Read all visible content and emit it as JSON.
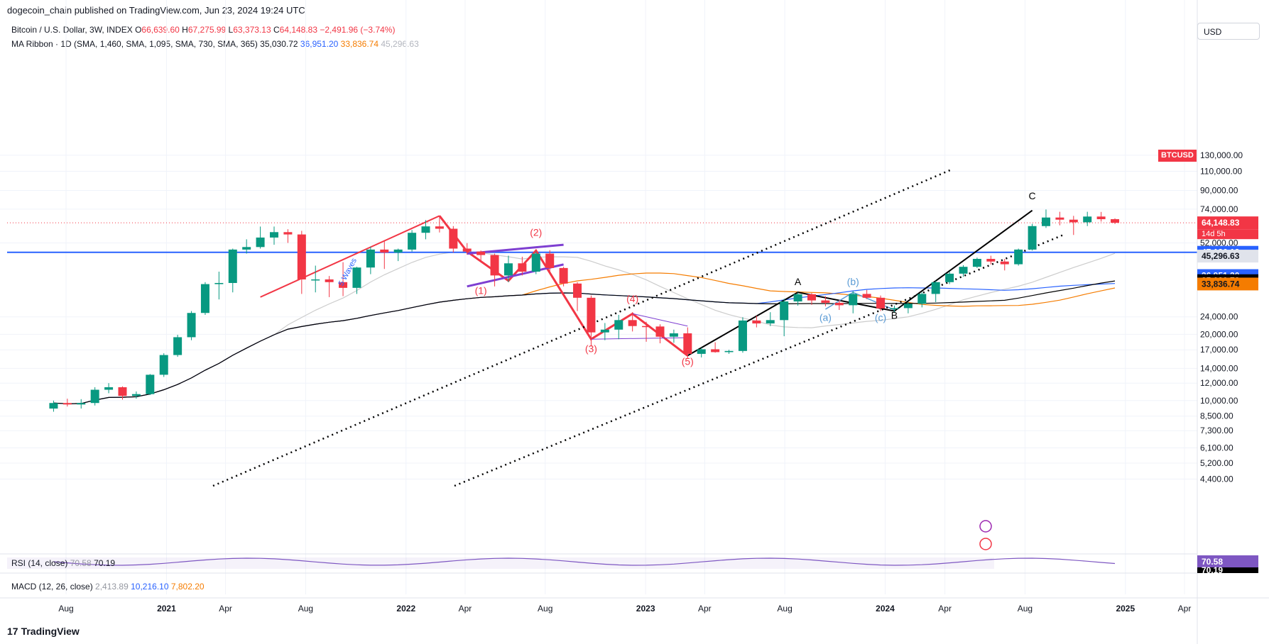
{
  "header": {
    "publisher": "dogecoin_chain published on TradingView.com, Jun 23, 2024 19:24 UTC"
  },
  "legend": {
    "symbol": "Bitcoin / U.S. Dollar, 3W, INDEX",
    "o_label": "O",
    "o": "66,639.60",
    "h_label": "H",
    "h": "67,275.99",
    "l_label": "L",
    "l": "63,373.13",
    "c_label": "C",
    "c": "64,148.83",
    "change": "−2,491.96 (−3.74%)",
    "ma_ribbon": "MA Ribbon · 1D (SMA, 1,460, SMA, 1,095, SMA, 730, SMA, 365)",
    "ma1": "35,030.72",
    "ma2": "36,951.20",
    "ma3": "33,836.74",
    "ma4": "45,296.63"
  },
  "currency": "USD",
  "colors": {
    "up": "#089981",
    "down": "#f23645",
    "hline": "#2962ff",
    "ma1460": "#000000",
    "ma1095": "#2962ff",
    "ma730": "#f57c00",
    "ma365": "#cccccc",
    "wave_red": "#f23645",
    "channel": "#7e3fd1",
    "abc": "#5a9bd5"
  },
  "chart_data": {
    "type": "candlestick",
    "symbol_tag": "BTCUSD",
    "time_remaining": "14d 5h",
    "y_scale": "log",
    "y_ticks": [
      4400,
      5200,
      6100,
      7300,
      8500,
      10000,
      12000,
      14000,
      17000,
      20000,
      24000,
      52000,
      74000,
      90000,
      110000,
      130000
    ],
    "y_tick_labels": [
      "4,400.00",
      "5,200.00",
      "6,100.00",
      "7,300.00",
      "8,500.00",
      "10,000.00",
      "12,000.00",
      "14,000.00",
      "17,000.00",
      "20,000.00",
      "24,000.00",
      "52,000.00",
      "74,000.00",
      "90,000.00",
      "110,000.00",
      "130,000.00"
    ],
    "x_tick_labels": [
      "Aug",
      "2021",
      "Apr",
      "Aug",
      "2022",
      "Apr",
      "Aug",
      "2023",
      "Apr",
      "Aug",
      "2024",
      "Apr",
      "Aug",
      "2025",
      "Apr"
    ],
    "x_tick_dates": [
      "2020-08-01",
      "2021-01-01",
      "2021-04-01",
      "2021-08-01",
      "2022-01-01",
      "2022-04-01",
      "2022-08-01",
      "2023-01-01",
      "2023-04-01",
      "2023-08-01",
      "2024-01-01",
      "2024-04-01",
      "2024-08-01",
      "2025-01-01",
      "2025-04-01"
    ],
    "candles": [
      {
        "o": 9200,
        "h": 10000,
        "l": 8900,
        "c": 9750
      },
      {
        "o": 9750,
        "h": 10200,
        "l": 9400,
        "c": 9600
      },
      {
        "o": 9600,
        "h": 10150,
        "l": 9200,
        "c": 9750
      },
      {
        "o": 9750,
        "h": 11500,
        "l": 9500,
        "c": 11200
      },
      {
        "o": 11200,
        "h": 12000,
        "l": 10800,
        "c": 11500
      },
      {
        "o": 11500,
        "h": 11600,
        "l": 10100,
        "c": 10500
      },
      {
        "o": 10500,
        "h": 11000,
        "l": 10200,
        "c": 10700
      },
      {
        "o": 10700,
        "h": 13200,
        "l": 10600,
        "c": 13100
      },
      {
        "o": 13100,
        "h": 16400,
        "l": 12800,
        "c": 16100
      },
      {
        "o": 16100,
        "h": 19900,
        "l": 15800,
        "c": 19400
      },
      {
        "o": 19400,
        "h": 25500,
        "l": 18800,
        "c": 25000
      },
      {
        "o": 25000,
        "h": 34500,
        "l": 24500,
        "c": 33800
      },
      {
        "o": 33800,
        "h": 38500,
        "l": 28800,
        "c": 34200
      },
      {
        "o": 34200,
        "h": 49000,
        "l": 31000,
        "c": 48500
      },
      {
        "o": 48500,
        "h": 54000,
        "l": 46500,
        "c": 49800
      },
      {
        "o": 49800,
        "h": 61700,
        "l": 49000,
        "c": 55000
      },
      {
        "o": 55000,
        "h": 61700,
        "l": 51000,
        "c": 58200
      },
      {
        "o": 58200,
        "h": 60000,
        "l": 52000,
        "c": 56800
      },
      {
        "o": 56800,
        "h": 59000,
        "l": 30500,
        "c": 35500
      },
      {
        "o": 35500,
        "h": 41000,
        "l": 31000,
        "c": 35500
      },
      {
        "o": 35500,
        "h": 36800,
        "l": 29500,
        "c": 34500
      },
      {
        "o": 34500,
        "h": 42500,
        "l": 29800,
        "c": 32500
      },
      {
        "o": 32500,
        "h": 40500,
        "l": 30500,
        "c": 40200
      },
      {
        "o": 40200,
        "h": 50000,
        "l": 37500,
        "c": 48500
      },
      {
        "o": 48500,
        "h": 52800,
        "l": 39600,
        "c": 47000
      },
      {
        "o": 47000,
        "h": 49000,
        "l": 43000,
        "c": 48500
      },
      {
        "o": 48500,
        "h": 59500,
        "l": 47500,
        "c": 57800
      },
      {
        "o": 57800,
        "h": 66000,
        "l": 54000,
        "c": 61800
      },
      {
        "o": 61800,
        "h": 69000,
        "l": 58000,
        "c": 60300
      },
      {
        "o": 60300,
        "h": 62000,
        "l": 47000,
        "c": 49000
      },
      {
        "o": 49000,
        "h": 51900,
        "l": 46000,
        "c": 47500
      },
      {
        "o": 47500,
        "h": 48000,
        "l": 42500,
        "c": 45800
      },
      {
        "o": 45800,
        "h": 46500,
        "l": 33000,
        "c": 37000
      },
      {
        "o": 37000,
        "h": 45500,
        "l": 34500,
        "c": 42000
      },
      {
        "o": 42000,
        "h": 45000,
        "l": 37000,
        "c": 38500
      },
      {
        "o": 38500,
        "h": 47500,
        "l": 37500,
        "c": 46500
      },
      {
        "o": 46500,
        "h": 48200,
        "l": 38000,
        "c": 40000
      },
      {
        "o": 40000,
        "h": 40500,
        "l": 33000,
        "c": 34000
      },
      {
        "o": 34000,
        "h": 34500,
        "l": 25500,
        "c": 29300
      },
      {
        "o": 29300,
        "h": 30000,
        "l": 17600,
        "c": 20400
      },
      {
        "o": 20400,
        "h": 22500,
        "l": 18800,
        "c": 21000
      },
      {
        "o": 21000,
        "h": 24500,
        "l": 19000,
        "c": 23200
      },
      {
        "o": 23200,
        "h": 25200,
        "l": 20600,
        "c": 21800
      },
      {
        "o": 21800,
        "h": 22800,
        "l": 18500,
        "c": 21700
      },
      {
        "o": 21700,
        "h": 22200,
        "l": 18200,
        "c": 19500
      },
      {
        "o": 19500,
        "h": 21000,
        "l": 18300,
        "c": 20200
      },
      {
        "o": 20200,
        "h": 21500,
        "l": 15500,
        "c": 16300
      },
      {
        "o": 16300,
        "h": 17400,
        "l": 15700,
        "c": 17100
      },
      {
        "o": 17100,
        "h": 18400,
        "l": 16500,
        "c": 16600
      },
      {
        "o": 16600,
        "h": 17000,
        "l": 16300,
        "c": 16800
      },
      {
        "o": 16800,
        "h": 23900,
        "l": 16500,
        "c": 23100
      },
      {
        "o": 23100,
        "h": 24300,
        "l": 21500,
        "c": 22400
      },
      {
        "o": 22400,
        "h": 25200,
        "l": 21800,
        "c": 23200
      },
      {
        "o": 23200,
        "h": 29000,
        "l": 19600,
        "c": 28200
      },
      {
        "o": 28200,
        "h": 31000,
        "l": 27000,
        "c": 30400
      },
      {
        "o": 30400,
        "h": 30800,
        "l": 27200,
        "c": 28500
      },
      {
        "o": 28500,
        "h": 29800,
        "l": 26800,
        "c": 27800
      },
      {
        "o": 27800,
        "h": 28500,
        "l": 25800,
        "c": 27100
      },
      {
        "o": 27100,
        "h": 31400,
        "l": 24900,
        "c": 30500
      },
      {
        "o": 30500,
        "h": 31800,
        "l": 28900,
        "c": 29300
      },
      {
        "o": 29300,
        "h": 30000,
        "l": 25500,
        "c": 26200
      },
      {
        "o": 26200,
        "h": 27000,
        "l": 25200,
        "c": 26300
      },
      {
        "o": 26300,
        "h": 28000,
        "l": 24900,
        "c": 27500
      },
      {
        "o": 27500,
        "h": 31000,
        "l": 26500,
        "c": 30500
      },
      {
        "o": 30500,
        "h": 35000,
        "l": 28000,
        "c": 34500
      },
      {
        "o": 34500,
        "h": 38500,
        "l": 33800,
        "c": 37700
      },
      {
        "o": 37700,
        "h": 41200,
        "l": 36500,
        "c": 40500
      },
      {
        "o": 40500,
        "h": 44600,
        "l": 40000,
        "c": 44000
      },
      {
        "o": 44000,
        "h": 45500,
        "l": 41500,
        "c": 42800
      },
      {
        "o": 42800,
        "h": 44000,
        "l": 39000,
        "c": 41600
      },
      {
        "o": 41600,
        "h": 49000,
        "l": 41000,
        "c": 48500
      },
      {
        "o": 48500,
        "h": 63500,
        "l": 48000,
        "c": 62000
      },
      {
        "o": 62000,
        "h": 73750,
        "l": 60800,
        "c": 67800
      },
      {
        "o": 67800,
        "h": 72000,
        "l": 62500,
        "c": 66300
      },
      {
        "o": 66300,
        "h": 69000,
        "l": 56500,
        "c": 64500
      },
      {
        "o": 64500,
        "h": 72000,
        "l": 62000,
        "c": 68500
      },
      {
        "o": 68500,
        "h": 71900,
        "l": 65000,
        "c": 66640
      },
      {
        "o": 66640,
        "h": 67276,
        "l": 63373,
        "c": 64149
      }
    ],
    "ma_1460": [],
    "ma_1095": [],
    "ma_730": [],
    "ma_365": [],
    "horizontal_line": 47136.13,
    "wave_labels": [
      "(1)",
      "(2)",
      "(3)",
      "(4)",
      "(5)",
      "A",
      "B",
      "C",
      "(a)",
      "(b)",
      "(c)"
    ],
    "annotation": "5 Waves",
    "price_labels": [
      {
        "value": "64,148.83",
        "type": "last"
      },
      {
        "value": "47,136.13",
        "type": "hline"
      },
      {
        "value": "45,296.63",
        "type": "ma365"
      },
      {
        "value": "36,951.20",
        "type": "ma1095"
      },
      {
        "value": "35,030.72",
        "type": "ma1460"
      },
      {
        "value": "33,836.74",
        "type": "ma730"
      }
    ]
  },
  "indicators": {
    "rsi_label": "RSI (14, close)",
    "rsi_val1": "70.58",
    "rsi_val2": "70.19",
    "rsi_tag1": "70.58",
    "rsi_tag2": "70.19",
    "macd_label": "MACD (12, 26, close)",
    "macd_val1": "2,413.89",
    "macd_val2": "10,216.10",
    "macd_val3": "7,802.20"
  },
  "footer": {
    "logo_mark": "17",
    "brand": "TradingView"
  }
}
